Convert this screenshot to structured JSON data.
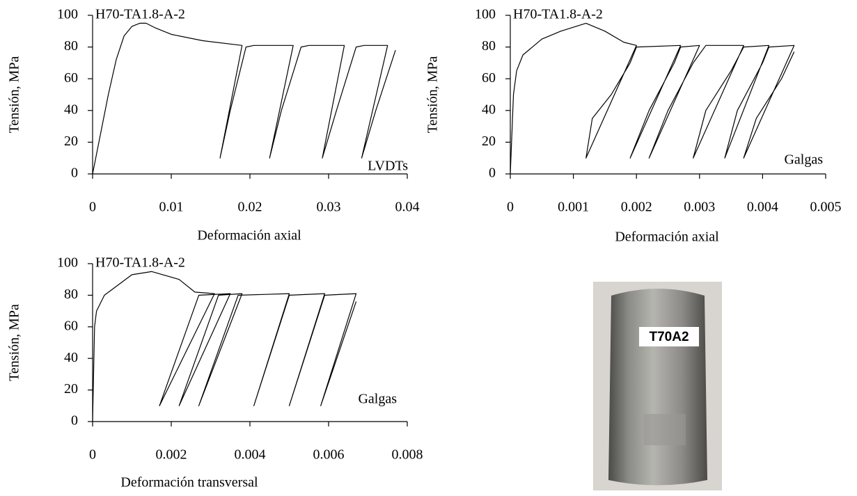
{
  "chart_data": [
    {
      "type": "line",
      "ylabel": "Tensión, MPa",
      "xlabel": "Deformación axial",
      "annotations": [
        "H70-TA1.8-A-2",
        "LVDTs"
      ],
      "xlim": [
        0,
        0.04
      ],
      "xticks": [
        0,
        0.01,
        0.02,
        0.03,
        0.04
      ],
      "ylim": [
        0,
        100
      ],
      "yticks": [
        0,
        20,
        40,
        60,
        80,
        100
      ],
      "series": [
        {
          "color": "#000000",
          "x": [
            0,
            0.001,
            0.002,
            0.003,
            0.004,
            0.005,
            0.006,
            0.0068,
            0.008,
            0.01,
            0.014,
            0.019,
            0.0162,
            0.0175,
            0.0195,
            0.0205,
            0.0255,
            0.0225,
            0.024,
            0.0265,
            0.0275,
            0.032,
            0.0292,
            0.031,
            0.0335,
            0.0345,
            0.0375,
            0.0342,
            0.036,
            0.0385
          ],
          "values": [
            0,
            25,
            50,
            72,
            87,
            93,
            95,
            95,
            92,
            88,
            84,
            81,
            10,
            40,
            80,
            81,
            81,
            10,
            40,
            80,
            81,
            81,
            10,
            40,
            80,
            81,
            81,
            10,
            40,
            78
          ]
        }
      ]
    },
    {
      "type": "line",
      "ylabel": "Tensión, MPa",
      "xlabel": "Deformación axial",
      "annotations": [
        "H70-TA1.8-A-2",
        "Galgas"
      ],
      "xlim": [
        0,
        0.005
      ],
      "xticks": [
        0,
        0.001,
        0.002,
        0.003,
        0.004,
        0.005
      ],
      "ylim": [
        0,
        100
      ],
      "yticks": [
        0,
        20,
        40,
        60,
        80,
        100
      ],
      "series": [
        {
          "color": "#000000",
          "x": [
            0,
            5e-05,
            0.0001,
            0.0002,
            0.0005,
            0.0008,
            0.0012,
            0.0015,
            0.0018,
            0.002,
            0.0012,
            0.0013,
            0.0016,
            0.0019,
            0.002,
            0.0027,
            0.0019,
            0.0022,
            0.0026,
            0.0027,
            0.003,
            0.0022,
            0.0025,
            0.0029,
            0.0031,
            0.0037,
            0.0029,
            0.0031,
            0.0035,
            0.0037,
            0.0041,
            0.0034,
            0.0036,
            0.004,
            0.0041,
            0.0045,
            0.0037,
            0.0039,
            0.0043,
            0.0045
          ],
          "values": [
            0,
            50,
            65,
            75,
            85,
            90,
            95,
            90,
            83,
            81,
            10,
            35,
            50,
            70,
            80,
            81,
            10,
            40,
            70,
            80,
            81,
            10,
            40,
            70,
            81,
            81,
            10,
            40,
            65,
            80,
            81,
            10,
            40,
            70,
            80,
            81,
            10,
            35,
            60,
            77
          ]
        }
      ]
    },
    {
      "type": "line",
      "ylabel": "Tensión, MPa",
      "xlabel": "Deformación transversal",
      "annotations": [
        "H70-TA1.8-A-2",
        "Galgas"
      ],
      "xlim": [
        0,
        0.008
      ],
      "xticks": [
        0,
        0.002,
        0.004,
        0.006,
        0.008
      ],
      "ylim": [
        0,
        100
      ],
      "yticks": [
        0,
        20,
        40,
        60,
        80,
        100
      ],
      "series": [
        {
          "color": "#000000",
          "x": [
            0,
            5e-05,
            0.0001,
            0.0003,
            0.001,
            0.0015,
            0.0022,
            0.0026,
            0.0031,
            0.0017,
            0.0027,
            0.0035,
            0.0022,
            0.0032,
            0.0038,
            0.0027,
            0.0037,
            0.005,
            0.0041,
            0.005,
            0.0059,
            0.005,
            0.0059,
            0.0067,
            0.0058,
            0.0067
          ],
          "values": [
            0,
            60,
            70,
            80,
            93,
            95,
            90,
            82,
            81,
            10,
            80,
            81,
            10,
            80,
            81,
            10,
            80,
            81,
            10,
            80,
            81,
            10,
            80,
            81,
            10,
            76
          ]
        }
      ]
    }
  ],
  "photo": {
    "label": "T70A2"
  }
}
